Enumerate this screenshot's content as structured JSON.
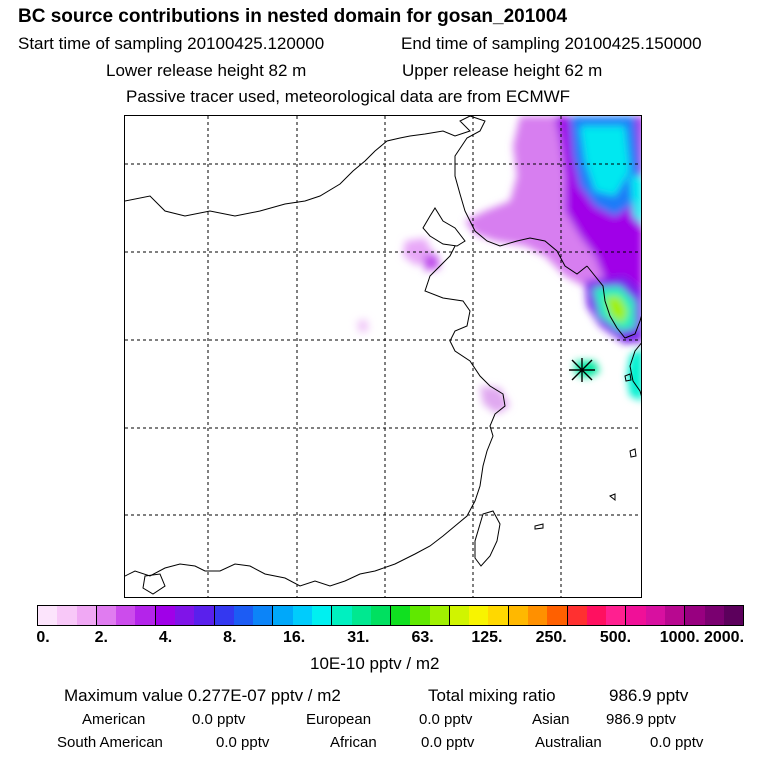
{
  "title": "BC  source contributions in nested domain for gosan_201004",
  "header": {
    "start_time": "Start time of sampling 20100425.120000",
    "end_time": "End time of sampling 20100425.150000",
    "lower_release": "Lower release height   82 m",
    "upper_release": "Upper release height   62 m",
    "note": "Passive tracer used, meteorological data are from ECMWF"
  },
  "colorbar": {
    "tick_labels": [
      "0.",
      "2.",
      "4.",
      "8.",
      "16.",
      "31.",
      "63.",
      "125.",
      "250.",
      "500.",
      "1000.",
      "2000."
    ],
    "colors": [
      "#fce4fc",
      "#f8c8f8",
      "#f0a8f4",
      "#e07cf0",
      "#cc4cec",
      "#b424ea",
      "#a000e8",
      "#8014e8",
      "#5a20ec",
      "#3438f0",
      "#1c5cf4",
      "#0c84f8",
      "#00a8fa",
      "#00ccfc",
      "#00f0f0",
      "#00f0c0",
      "#00e890",
      "#00e060",
      "#10e020",
      "#60e800",
      "#a0f000",
      "#d0f400",
      "#f8f400",
      "#ffd800",
      "#ffb800",
      "#ff9000",
      "#ff6000",
      "#ff3030",
      "#ff1060",
      "#ff2090",
      "#f01098",
      "#d810a0",
      "#b80890",
      "#980080",
      "#7a0070",
      "#5c005c"
    ],
    "unit": "10E-10 pptv / m2"
  },
  "stats": {
    "max_label": "Maximum value  0.277E-07 pptv / m2",
    "total_label": "Total mixing ratio",
    "total_value": "986.9 pptv",
    "regions": [
      {
        "name": "American",
        "value": "0.0 pptv"
      },
      {
        "name": "European",
        "value": "0.0 pptv"
      },
      {
        "name": "Asian",
        "value": "986.9 pptv"
      },
      {
        "name": "South American",
        "value": "0.0 pptv"
      },
      {
        "name": "African",
        "value": "0.0 pptv"
      },
      {
        "name": "Australian",
        "value": "0.0 pptv"
      }
    ]
  }
}
